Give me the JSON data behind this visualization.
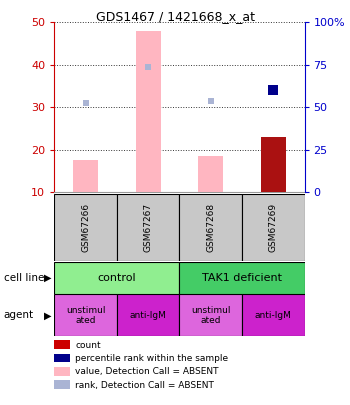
{
  "title": "GDS1467 / 1421668_x_at",
  "samples": [
    "GSM67266",
    "GSM67267",
    "GSM67268",
    "GSM67269"
  ],
  "bar_values_absent": [
    17.5,
    48,
    18.5,
    23
  ],
  "bar_colors_absent": [
    "#ffb6c1",
    "#ffb6c1",
    "#ffb6c1",
    "#aa1111"
  ],
  "rank_dots_absent": [
    31,
    39.5,
    31.5,
    null
  ],
  "rank_dots_present": [
    null,
    null,
    null,
    34
  ],
  "ylim_left": [
    10,
    50
  ],
  "ylim_right": [
    0,
    100
  ],
  "yticks_left": [
    10,
    20,
    30,
    40,
    50
  ],
  "yticks_right": [
    0,
    25,
    50,
    75,
    100
  ],
  "ytick_labels_right": [
    "0",
    "25",
    "50",
    "75",
    "100%"
  ],
  "cell_line_labels": [
    "control",
    "TAK1 deficient"
  ],
  "cell_line_spans": [
    [
      0,
      2
    ],
    [
      2,
      4
    ]
  ],
  "cell_line_colors": [
    "#90ee90",
    "#44cc66"
  ],
  "agent_labels": [
    "unstimul\nated",
    "anti-IgM",
    "unstimul\nated",
    "anti-IgM"
  ],
  "agent_colors": [
    "#dd66dd",
    "#cc22cc",
    "#dd66dd",
    "#cc22cc"
  ],
  "bar_width": 0.4,
  "dot_absent_color": "#aab4d4",
  "dot_present_color": "#00008b",
  "left_axis_color": "#cc0000",
  "right_axis_color": "#0000cc",
  "grid_color": "#000000",
  "bg_color": "#ffffff",
  "legend_items": [
    [
      "#cc0000",
      "count"
    ],
    [
      "#00008b",
      "percentile rank within the sample"
    ],
    [
      "#ffb6c1",
      "value, Detection Call = ABSENT"
    ],
    [
      "#aab4d4",
      "rank, Detection Call = ABSENT"
    ]
  ]
}
